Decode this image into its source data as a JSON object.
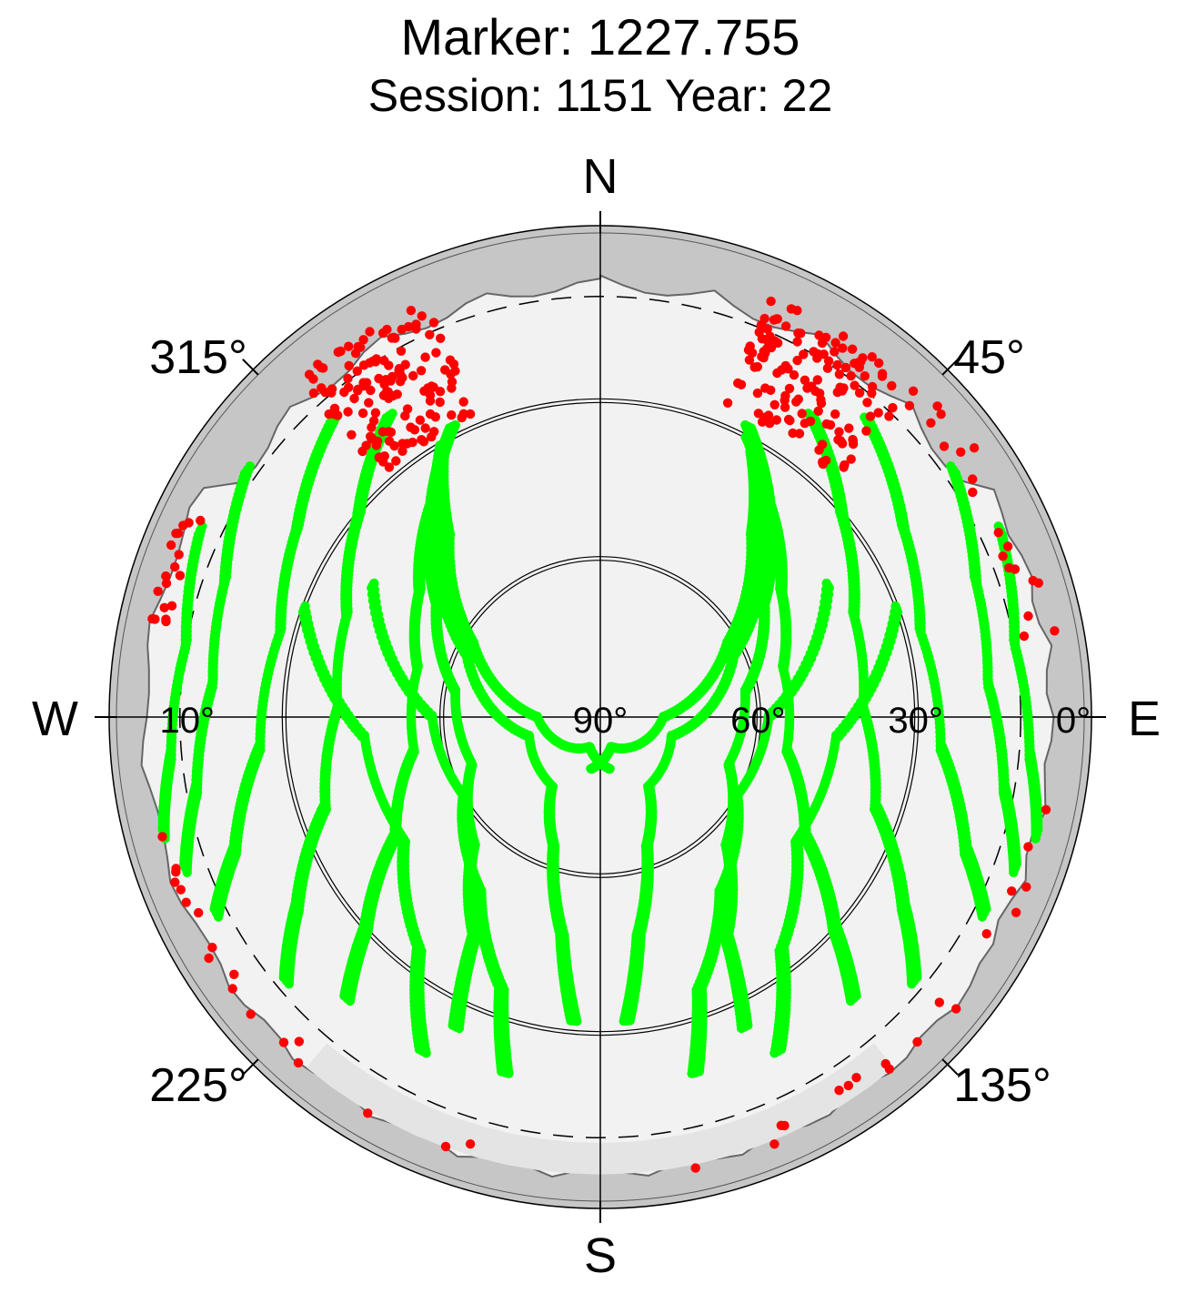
{
  "chart_data": {
    "type": "scatter",
    "title": "Marker: 1227.755",
    "subtitle": "Session: 1151 Year: 22",
    "projection": "polar-skyplot",
    "compass": {
      "north": "N",
      "east": "E",
      "south": "S",
      "west": "W"
    },
    "azimuth_labels": [
      {
        "az": 45,
        "text": "45°"
      },
      {
        "az": 135,
        "text": "135°"
      },
      {
        "az": 225,
        "text": "225°"
      },
      {
        "az": 315,
        "text": "315°"
      }
    ],
    "elevation_labels": [
      {
        "el": 0,
        "text": "0°"
      },
      {
        "el": 30,
        "text": "30°"
      },
      {
        "el": 60,
        "text": "60°"
      },
      {
        "el": 90,
        "text": "90°"
      },
      {
        "el": 10,
        "text": "10°"
      }
    ],
    "elevation_rings": [
      30,
      60
    ],
    "cutoff_elevation": 10,
    "colors": {
      "accepted": "#00ff00",
      "rejected": "#ff0000",
      "horizon_mask": "#c6c6c6",
      "sky": "#f2f2f2"
    },
    "series": [
      {
        "name": "",
        "color": "#00ff00",
        "role": "accepted",
        "tracks": [
          [
            [
              330,
              30
            ],
            [
              320,
              45
            ],
            [
              300,
              62
            ],
            [
              270,
              78
            ],
            [
              200,
              84
            ],
            [
              170,
              80
            ]
          ],
          [
            [
              330,
              30
            ],
            [
              318,
              44
            ],
            [
              295,
              62
            ],
            [
              255,
              76
            ],
            [
              215,
              74
            ],
            [
              200,
              64
            ],
            [
              190,
              48
            ],
            [
              185,
              32
            ]
          ],
          [
            [
              333,
              28
            ],
            [
              320,
              40
            ],
            [
              305,
              52
            ],
            [
              280,
              62
            ],
            [
              250,
              64
            ],
            [
              225,
              56
            ],
            [
              210,
              42
            ],
            [
              205,
              25
            ]
          ],
          [
            [
              333,
              28
            ],
            [
              322,
              38
            ],
            [
              305,
              48
            ],
            [
              285,
              54
            ],
            [
              260,
              54
            ],
            [
              240,
              45
            ],
            [
              228,
              30
            ],
            [
              222,
              18
            ]
          ],
          [
            [
              325,
              20
            ],
            [
              310,
              30
            ],
            [
              292,
              38
            ],
            [
              272,
              40
            ],
            [
              252,
              35
            ],
            [
              238,
              22
            ],
            [
              230,
              12
            ]
          ],
          [
            [
              318,
              14
            ],
            [
              302,
              22
            ],
            [
              285,
              27
            ],
            [
              265,
              25
            ],
            [
              250,
              16
            ],
            [
              243,
              8
            ]
          ],
          [
            [
              305,
              8
            ],
            [
              290,
              14
            ],
            [
              275,
              16
            ],
            [
              260,
              12
            ],
            [
              250,
              6
            ]
          ],
          [
            [
              295,
              6
            ],
            [
              280,
              10
            ],
            [
              265,
              8
            ],
            [
              255,
              4
            ]
          ],
          [
            [
              30,
              32
            ],
            [
              40,
              45
            ],
            [
              60,
              62
            ],
            [
              90,
              78
            ],
            [
              160,
              84
            ],
            [
              190,
              80
            ]
          ],
          [
            [
              30,
              32
            ],
            [
              42,
              44
            ],
            [
              65,
              62
            ],
            [
              105,
              76
            ],
            [
              145,
              74
            ],
            [
              160,
              64
            ],
            [
              170,
              48
            ],
            [
              175,
              32
            ]
          ],
          [
            [
              28,
              30
            ],
            [
              40,
              40
            ],
            [
              55,
              52
            ],
            [
              80,
              62
            ],
            [
              110,
              64
            ],
            [
              135,
              56
            ],
            [
              150,
              42
            ],
            [
              155,
              25
            ]
          ],
          [
            [
              27,
              28
            ],
            [
              38,
              38
            ],
            [
              55,
              48
            ],
            [
              75,
              54
            ],
            [
              100,
              54
            ],
            [
              120,
              45
            ],
            [
              132,
              30
            ],
            [
              138,
              18
            ]
          ],
          [
            [
              35,
              20
            ],
            [
              50,
              30
            ],
            [
              68,
              38
            ],
            [
              88,
              40
            ],
            [
              108,
              35
            ],
            [
              122,
              22
            ],
            [
              130,
              12
            ]
          ],
          [
            [
              42,
              14
            ],
            [
              58,
              22
            ],
            [
              75,
              27
            ],
            [
              95,
              25
            ],
            [
              110,
              16
            ],
            [
              117,
              8
            ]
          ],
          [
            [
              55,
              8
            ],
            [
              70,
              14
            ],
            [
              85,
              16
            ],
            [
              100,
              12
            ],
            [
              110,
              6
            ]
          ],
          [
            [
              65,
              6
            ],
            [
              80,
              10
            ],
            [
              95,
              8
            ],
            [
              105,
              4
            ]
          ],
          [
            [
              300,
              40
            ],
            [
              270,
              58
            ],
            [
              240,
              60
            ],
            [
              215,
              50
            ],
            [
              200,
              35
            ],
            [
              195,
              20
            ]
          ],
          [
            [
              60,
              40
            ],
            [
              90,
              58
            ],
            [
              120,
              60
            ],
            [
              145,
              50
            ],
            [
              160,
              35
            ],
            [
              165,
              20
            ]
          ],
          [
            [
              290,
              30
            ],
            [
              265,
              45
            ],
            [
              238,
              46
            ],
            [
              218,
              34
            ],
            [
              208,
              18
            ]
          ],
          [
            [
              70,
              30
            ],
            [
              95,
              45
            ],
            [
              122,
              46
            ],
            [
              142,
              34
            ],
            [
              152,
              18
            ]
          ]
        ]
      },
      {
        "name": "",
        "color": "#ff0000",
        "role": "rejected",
        "regions": [
          {
            "az_min": 318,
            "az_max": 338,
            "el_min": 4,
            "el_max": 28
          },
          {
            "az_min": 22,
            "az_max": 45,
            "el_min": 4,
            "el_max": 26
          },
          {
            "az_min": 45,
            "az_max": 80,
            "el_min": 2,
            "el_max": 8
          },
          {
            "az_min": 280,
            "az_max": 300,
            "el_min": 2,
            "el_max": 6
          },
          {
            "az_min": 100,
            "az_max": 170,
            "el_min": 2,
            "el_max": 6
          },
          {
            "az_min": 190,
            "az_max": 260,
            "el_min": 2,
            "el_max": 6
          }
        ]
      }
    ]
  }
}
